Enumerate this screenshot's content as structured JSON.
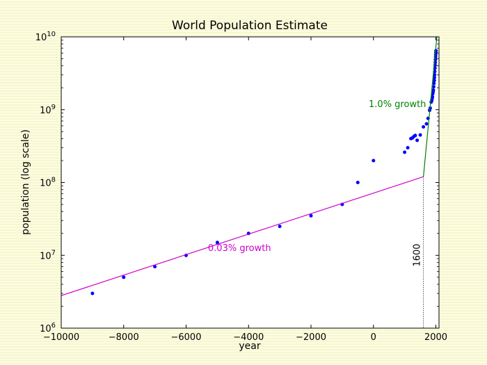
{
  "chart_data": {
    "type": "scatter",
    "title": "World Population Estimate",
    "xlabel": "year",
    "ylabel": "population (log scale)",
    "xlim": [
      -10000,
      2100
    ],
    "ylim": [
      1000000,
      10000000000
    ],
    "yscale": "log",
    "grid": false,
    "x_ticks": [
      -10000,
      -8000,
      -6000,
      -4000,
      -2000,
      0,
      2000
    ],
    "x_tick_labels": [
      "−10000",
      "−8000",
      "−6000",
      "−4000",
      "−2000",
      "0",
      "2000"
    ],
    "y_ticks": [
      {
        "value": 1000000,
        "base": "10",
        "exp": "6"
      },
      {
        "value": 10000000,
        "base": "10",
        "exp": "7"
      },
      {
        "value": 100000000,
        "base": "10",
        "exp": "8"
      },
      {
        "value": 1000000000,
        "base": "10",
        "exp": "9"
      },
      {
        "value": 10000000000,
        "base": "10",
        "exp": "10"
      }
    ],
    "series": [
      {
        "type": "scatter",
        "color": "#0000ff",
        "points": [
          [
            -9000,
            3000000
          ],
          [
            -8000,
            5000000
          ],
          [
            -7000,
            7000000
          ],
          [
            -6000,
            10000000
          ],
          [
            -5000,
            15000000
          ],
          [
            -4000,
            20000000
          ],
          [
            -3000,
            25000000
          ],
          [
            -2000,
            35000000
          ],
          [
            -1000,
            50000000
          ],
          [
            -500,
            100000000
          ],
          [
            0,
            200000000
          ],
          [
            1000,
            260000000
          ],
          [
            1100,
            300000000
          ],
          [
            1200,
            400000000
          ],
          [
            1250,
            410000000
          ],
          [
            1300,
            430000000
          ],
          [
            1340,
            443000000
          ],
          [
            1400,
            380000000
          ],
          [
            1500,
            450000000
          ],
          [
            1600,
            580000000
          ],
          [
            1700,
            640000000
          ],
          [
            1750,
            760000000
          ],
          [
            1800,
            980000000
          ],
          [
            1820,
            1050000000
          ],
          [
            1850,
            1270000000
          ],
          [
            1870,
            1340000000
          ],
          [
            1880,
            1420000000
          ],
          [
            1890,
            1500000000
          ],
          [
            1900,
            1650000000
          ],
          [
            1910,
            1750000000
          ],
          [
            1920,
            1860000000
          ],
          [
            1930,
            2070000000
          ],
          [
            1940,
            2300000000
          ],
          [
            1950,
            2520000000
          ],
          [
            1955,
            2760000000
          ],
          [
            1960,
            3020000000
          ],
          [
            1965,
            3340000000
          ],
          [
            1970,
            3700000000
          ],
          [
            1975,
            4070000000
          ],
          [
            1980,
            4440000000
          ],
          [
            1985,
            4850000000
          ],
          [
            1990,
            5290000000
          ],
          [
            1995,
            5700000000
          ],
          [
            2000,
            6080000000
          ],
          [
            2005,
            6450000000
          ]
        ]
      },
      {
        "type": "line",
        "color": "#cc00cc",
        "points": [
          [
            -10000,
            2800000
          ],
          [
            1600,
            120000000
          ]
        ]
      },
      {
        "type": "line",
        "color": "#008000",
        "points": [
          [
            1600,
            120000000
          ],
          [
            2030,
            10000000000
          ]
        ]
      }
    ],
    "annotations": [
      {
        "text": "0.03% growth",
        "color": "#cc00cc",
        "x": -5300,
        "y": 11500000
      },
      {
        "text": "1.0% growth",
        "color": "#008000",
        "x": -150,
        "y": 1080000000
      }
    ],
    "vline": {
      "x": 1600,
      "y_top": 120000000,
      "label": "1600"
    }
  }
}
